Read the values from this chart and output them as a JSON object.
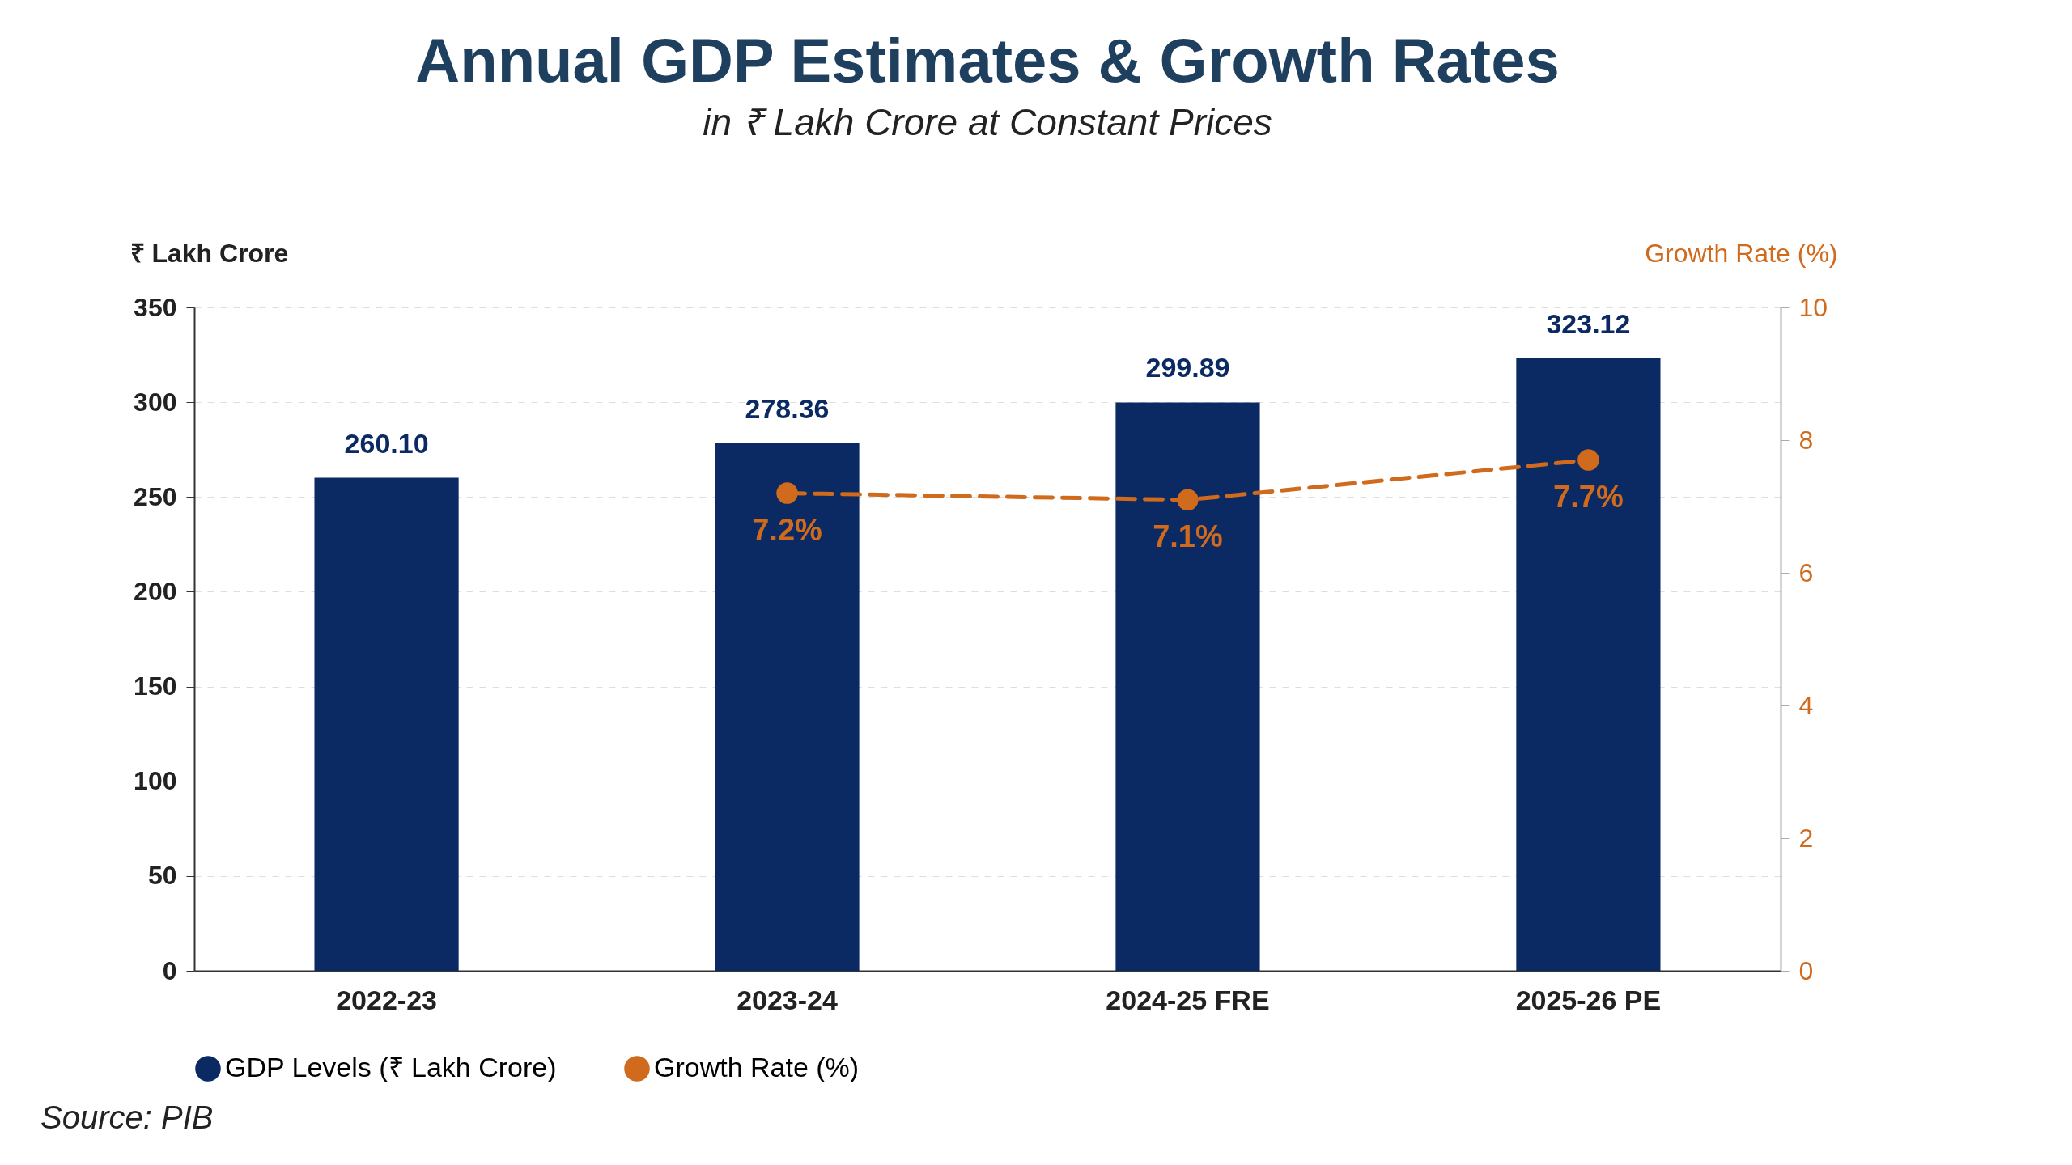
{
  "chart_data": {
    "type": "bar",
    "title": "Annual GDP Estimates & Growth Rates",
    "subtitle": "in ₹ Lakh Crore at Constant Prices",
    "ylabel": "₹ Lakh Crore",
    "y2label": "Growth Rate (%)",
    "categories": [
      "2022-23",
      "2023-24",
      "2024-25 FRE",
      "2025-26 PE"
    ],
    "series": [
      {
        "name": "GDP Levels (₹ Lakh Crore)",
        "color": "#0b2a63",
        "values": [
          260.1,
          278.36,
          299.89,
          323.12
        ],
        "value_labels": [
          "260.10",
          "278.36",
          "299.89",
          "323.12"
        ]
      },
      {
        "name": "Growth Rate (%)",
        "type": "line",
        "axis": "y2",
        "color": "#d06a1c",
        "values": [
          null,
          7.2,
          7.1,
          7.7
        ],
        "value_labels": [
          null,
          "7.2%",
          "7.1%",
          "7.7%"
        ],
        "marker": "circle",
        "line_style": "dashed"
      }
    ],
    "ylim": [
      0,
      350
    ],
    "yticks": [
      0,
      50,
      100,
      150,
      200,
      250,
      300,
      350
    ],
    "y2lim": [
      0,
      10
    ],
    "y2ticks": [
      0,
      2,
      4,
      6,
      8,
      10
    ],
    "grid": "y",
    "legend": "bottom",
    "annotations": [
      "Source: PIB"
    ]
  }
}
